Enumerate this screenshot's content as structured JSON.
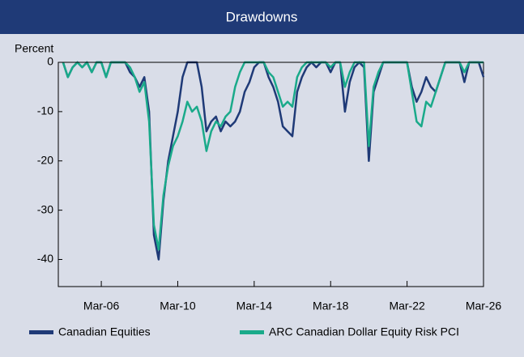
{
  "chart_data": {
    "type": "line",
    "title": "Drawdowns",
    "y_label": "Percent",
    "x": [
      "2004-03",
      "2004-06",
      "2004-09",
      "2004-12",
      "2005-03",
      "2005-06",
      "2005-09",
      "2005-12",
      "2006-03",
      "2006-06",
      "2006-09",
      "2006-12",
      "2007-03",
      "2007-06",
      "2007-09",
      "2007-12",
      "2008-03",
      "2008-06",
      "2008-09",
      "2008-12",
      "2009-03",
      "2009-06",
      "2009-09",
      "2009-12",
      "2010-03",
      "2010-06",
      "2010-09",
      "2010-12",
      "2011-03",
      "2011-06",
      "2011-09",
      "2011-12",
      "2012-03",
      "2012-06",
      "2012-09",
      "2012-12",
      "2013-03",
      "2013-06",
      "2013-09",
      "2013-12",
      "2014-03",
      "2014-06",
      "2014-09",
      "2014-12",
      "2015-03",
      "2015-06",
      "2015-09",
      "2015-12",
      "2016-03",
      "2016-06",
      "2016-09",
      "2016-12",
      "2017-03",
      "2017-06",
      "2017-09",
      "2017-12",
      "2018-03",
      "2018-06",
      "2018-09",
      "2018-12",
      "2019-03",
      "2019-06",
      "2019-09",
      "2019-12",
      "2020-03",
      "2020-06",
      "2020-09",
      "2020-12",
      "2021-03",
      "2021-06",
      "2021-09",
      "2021-12",
      "2022-03",
      "2022-06",
      "2022-09",
      "2022-12",
      "2023-03",
      "2023-06",
      "2023-09",
      "2023-12",
      "2024-03",
      "2024-06",
      "2024-09",
      "2024-12",
      "2025-03",
      "2025-06",
      "2025-09",
      "2025-12",
      "2026-03"
    ],
    "series": [
      {
        "name": "Canadian Equities",
        "color": "#1f3a77",
        "values": [
          0,
          -3,
          -1,
          0,
          -1,
          0,
          -2,
          0,
          0,
          -3,
          0,
          0,
          0,
          0,
          -2,
          -3,
          -5,
          -3,
          -10,
          -35,
          -40,
          -28,
          -20,
          -15,
          -10,
          -3,
          0,
          0,
          0,
          -5,
          -14,
          -12,
          -11,
          -14,
          -12,
          -13,
          -12,
          -10,
          -6,
          -4,
          -1,
          0,
          0,
          -3,
          -5,
          -8,
          -13,
          -14,
          -15,
          -6,
          -3,
          -1,
          0,
          -1,
          0,
          0,
          -2,
          0,
          0,
          -10,
          -4,
          -1,
          0,
          -1,
          -20,
          -6,
          -3,
          0,
          0,
          0,
          0,
          0,
          0,
          -5,
          -8,
          -6,
          -3,
          -5,
          -6,
          -3,
          0,
          0,
          0,
          0,
          -4,
          0,
          0,
          0,
          -3
        ]
      },
      {
        "name": "ARC Canadian Dollar Equity Risk PCI",
        "color": "#1aaa8a",
        "values": [
          0,
          -3,
          -1,
          0,
          -1,
          0,
          -2,
          0,
          0,
          -3,
          0,
          0,
          0,
          0,
          -1,
          -3,
          -6,
          -4,
          -12,
          -33,
          -38,
          -27,
          -21,
          -17,
          -15,
          -12,
          -8,
          -10,
          -9,
          -12,
          -18,
          -14,
          -12,
          -13,
          -11,
          -10,
          -5,
          -2,
          0,
          0,
          0,
          0,
          0,
          -2,
          -3,
          -6,
          -9,
          -8,
          -9,
          -3,
          -1,
          0,
          0,
          0,
          0,
          0,
          -1,
          0,
          0,
          -5,
          -2,
          0,
          0,
          0,
          -17,
          -5,
          -2,
          0,
          0,
          0,
          0,
          0,
          0,
          -6,
          -12,
          -13,
          -8,
          -9,
          -6,
          -3,
          0,
          0,
          0,
          0,
          -2,
          0,
          0,
          0,
          0
        ]
      }
    ],
    "xlim": [
      "2003-12",
      "2026-03"
    ],
    "xticks": [
      {
        "value": "2006-03",
        "label": "Mar-06"
      },
      {
        "value": "2010-03",
        "label": "Mar-10"
      },
      {
        "value": "2014-03",
        "label": "Mar-14"
      },
      {
        "value": "2018-03",
        "label": "Mar-18"
      },
      {
        "value": "2022-03",
        "label": "Mar-22"
      },
      {
        "value": "2026-03",
        "label": "Mar-26"
      }
    ],
    "ylim": [
      -45.5,
      0
    ],
    "yticks": [
      0,
      -10,
      -20,
      -30,
      -40
    ],
    "grid": false,
    "legend": "bottom"
  }
}
